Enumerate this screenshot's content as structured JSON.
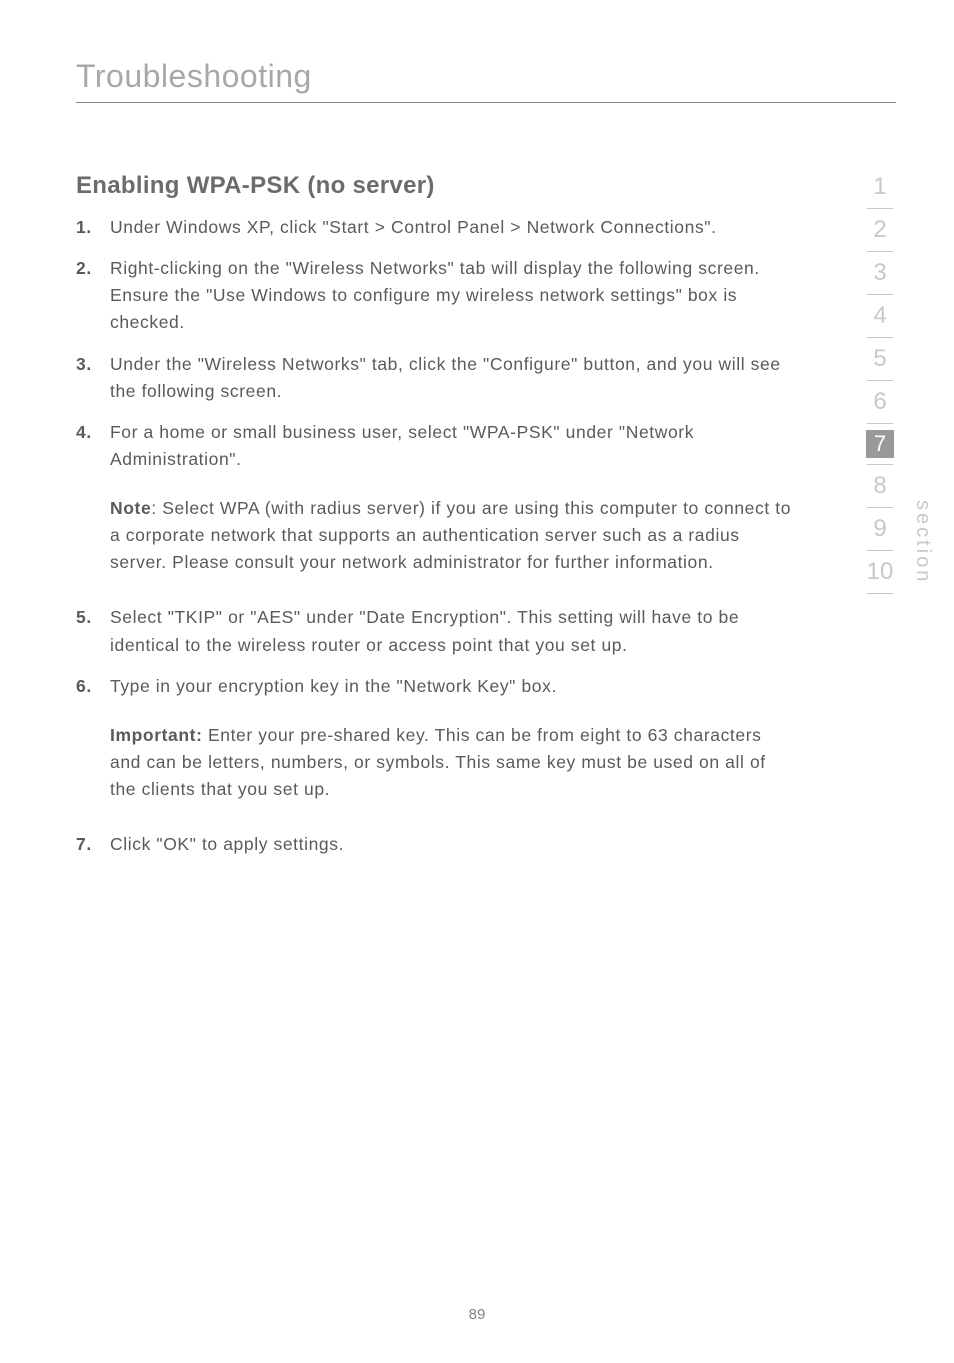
{
  "page": {
    "title": "Troubleshooting",
    "number": "89"
  },
  "heading": "Enabling WPA-PSK (no server)",
  "items": [
    {
      "num": "1.",
      "text": "Under Windows XP, click \"Start > Control Panel > Network Connections\"."
    },
    {
      "num": "2.",
      "text": "Right-clicking on the \"Wireless Networks\" tab will display the following screen. Ensure the \"Use Windows to configure my wireless network settings\" box is checked."
    },
    {
      "num": "3.",
      "text": "Under the \"Wireless Networks\" tab, click the \"Configure\" button, and you will see the following screen."
    },
    {
      "num": "4.",
      "text": "For a home or small business user, select \"WPA-PSK\" under \"Network Administration\"."
    }
  ],
  "note1": {
    "label": "Note",
    "text": ": Select WPA (with radius server) if you are using this computer to connect to a corporate network that supports an authentication server such as a radius server. Please consult your network administrator for further information."
  },
  "items2": [
    {
      "num": "5.",
      "text": "Select \"TKIP\" or \"AES\" under \"Date Encryption\". This setting will have to be identical to the wireless router or access point that you set up."
    },
    {
      "num": "6.",
      "text": "Type in your encryption key in the \"Network Key\" box."
    }
  ],
  "note2": {
    "label": "Important:",
    "text": " Enter your pre-shared key. This can be from eight to 63 characters and can be letters, numbers, or symbols. This same key must be used on all of the clients that you set up."
  },
  "items3": [
    {
      "num": "7.",
      "text": "Click \"OK\" to apply settings."
    }
  ],
  "nav": {
    "before": [
      "1",
      "2",
      "3",
      "4",
      "5",
      "6"
    ],
    "current": "7",
    "after": [
      "8",
      "9",
      "10"
    ],
    "section_label": "section"
  },
  "colors": {
    "title": "#a8a8a8",
    "body": "#5a5a5a",
    "nav_inactive": "#c8c8c8",
    "nav_active_bg": "#999999",
    "rule": "#888888"
  },
  "typography": {
    "title_size": 32,
    "heading_size": 24,
    "body_size": 17.5,
    "nav_size": 24
  }
}
